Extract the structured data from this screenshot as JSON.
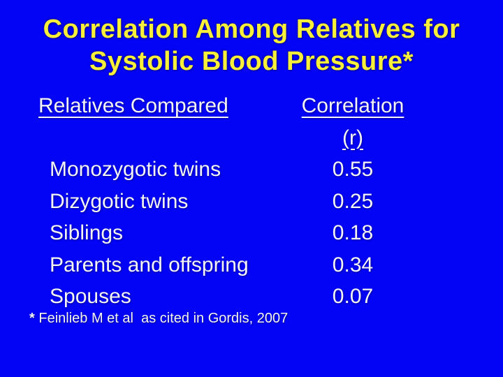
{
  "slide": {
    "colors": {
      "background": "#0303f6",
      "title_text": "#f8ef3a",
      "body_text": "#f4f4f4"
    },
    "title_line1": "Correlation Among Relatives for",
    "title_line2": "Systolic Blood Pressure*",
    "table": {
      "col1_header": "Relatives Compared",
      "col2_header": "Correlation (r)",
      "rows": [
        {
          "label": "Monozygotic twins",
          "value": "0.55"
        },
        {
          "label": "Dizygotic twins",
          "value": "0.25"
        },
        {
          "label": "Siblings",
          "value": "0.18"
        },
        {
          "label": "Parents and offspring",
          "value": "0.34"
        },
        {
          "label": "Spouses",
          "value": "0.07"
        }
      ]
    },
    "footnote_marker": "*",
    "footnote_text": " Feinlieb M et al  as cited in Gordis, 2007"
  },
  "chart_data": {
    "type": "table",
    "title": "Correlation Among Relatives for Systolic Blood Pressure*",
    "columns": [
      "Relatives Compared",
      "Correlation (r)"
    ],
    "categories": [
      "Monozygotic twins",
      "Dizygotic twins",
      "Siblings",
      "Parents and offspring",
      "Spouses"
    ],
    "values": [
      0.55,
      0.25,
      0.18,
      0.34,
      0.07
    ],
    "footnote": "* Feinlieb M et al  as cited in Gordis, 2007"
  }
}
